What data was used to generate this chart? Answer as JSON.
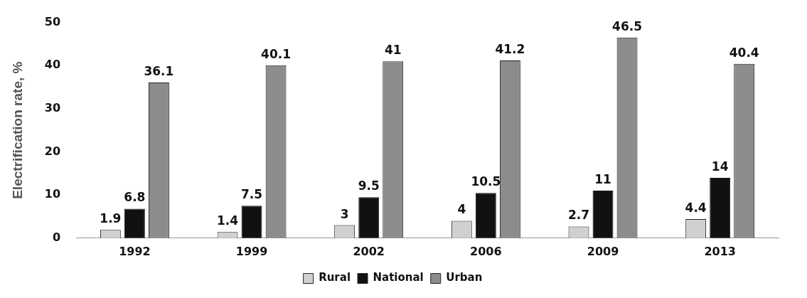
{
  "chart_data": {
    "type": "bar",
    "ylabel": "Electrification rate, %",
    "categories": [
      "1992",
      "1999",
      "2002",
      "2006",
      "2009",
      "2013"
    ],
    "series": [
      {
        "name": "Rural",
        "color": "#d0d0d0",
        "values": [
          1.9,
          1.4,
          3,
          4,
          2.7,
          4.4
        ]
      },
      {
        "name": "National",
        "color": "#111111",
        "values": [
          6.8,
          7.5,
          9.5,
          10.5,
          11,
          14
        ]
      },
      {
        "name": "Urban",
        "color": "#8c8c8c",
        "values": [
          36.1,
          40.1,
          41,
          41.2,
          46.5,
          40.4
        ]
      }
    ],
    "ylim": [
      0,
      50
    ],
    "yticks": [
      0,
      10,
      20,
      30,
      40,
      50
    ],
    "grid": false,
    "legend": "bottom",
    "data_labels": true
  }
}
